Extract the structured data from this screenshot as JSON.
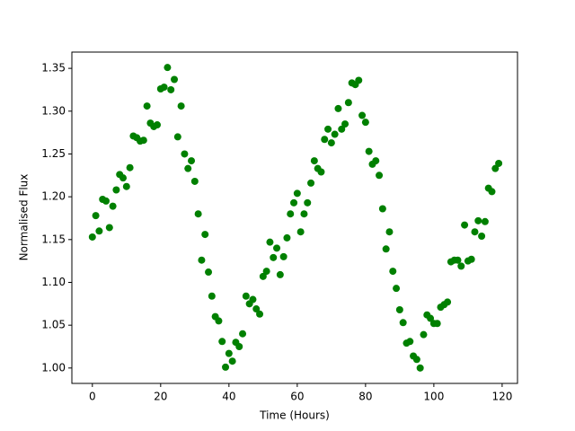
{
  "chart_data": {
    "type": "scatter",
    "xlabel": "Time (Hours)",
    "ylabel": "Normalised Flux",
    "color": "#008000",
    "x": [
      0,
      1,
      2,
      3,
      4,
      5,
      6,
      7,
      8,
      9,
      10,
      11,
      12,
      13,
      14,
      15,
      16,
      17,
      18,
      19,
      20,
      21,
      22,
      23,
      24,
      25,
      26,
      27,
      28,
      29,
      30,
      31,
      32,
      33,
      34,
      35,
      36,
      37,
      38,
      39,
      40,
      41,
      42,
      43,
      44,
      45,
      46,
      47,
      48,
      49,
      50,
      51,
      52,
      53,
      54,
      55,
      56,
      57,
      58,
      59,
      60,
      61,
      62,
      63,
      64,
      65,
      66,
      67,
      68,
      69,
      70,
      71,
      72,
      73,
      74,
      75,
      76,
      77,
      78,
      79,
      80,
      81,
      82,
      83,
      84,
      85,
      86,
      87,
      88,
      89,
      90,
      91,
      92,
      93,
      94,
      95,
      96,
      97,
      98,
      99,
      100,
      101,
      102,
      103,
      104,
      105,
      106,
      107,
      108,
      109,
      110,
      111,
      112,
      113,
      114,
      115,
      116,
      117,
      118,
      119
    ],
    "values": [
      1.153,
      1.178,
      1.16,
      1.197,
      1.195,
      1.164,
      1.189,
      1.208,
      1.226,
      1.222,
      1.212,
      1.234,
      1.271,
      1.269,
      1.265,
      1.266,
      1.306,
      1.286,
      1.282,
      1.284,
      1.326,
      1.328,
      1.351,
      1.325,
      1.337,
      1.27,
      1.306,
      1.25,
      1.233,
      1.242,
      1.218,
      1.18,
      1.126,
      1.156,
      1.112,
      1.084,
      1.06,
      1.055,
      1.031,
      1.001,
      1.017,
      1.008,
      1.03,
      1.025,
      1.04,
      1.084,
      1.075,
      1.08,
      1.069,
      1.063,
      1.107,
      1.113,
      1.147,
      1.129,
      1.14,
      1.109,
      1.13,
      1.152,
      1.18,
      1.193,
      1.204,
      1.159,
      1.18,
      1.193,
      1.216,
      1.242,
      1.233,
      1.229,
      1.267,
      1.279,
      1.263,
      1.273,
      1.303,
      1.279,
      1.285,
      1.31,
      1.333,
      1.331,
      1.336,
      1.295,
      1.287,
      1.253,
      1.238,
      1.242,
      1.225,
      1.186,
      1.139,
      1.159,
      1.113,
      1.093,
      1.068,
      1.053,
      1.029,
      1.031,
      1.014,
      1.01,
      1.0,
      1.039,
      1.062,
      1.058,
      1.052,
      1.052,
      1.071,
      1.074,
      1.077,
      1.124,
      1.126,
      1.126,
      1.119,
      1.167,
      1.125,
      1.127,
      1.159,
      1.172,
      1.154,
      1.171,
      1.21,
      1.206,
      1.233,
      1.239
    ],
    "xlim": [
      -6,
      124.5
    ],
    "ylim": [
      0.982,
      1.369
    ],
    "xticks": [
      0,
      20,
      40,
      60,
      80,
      100,
      120
    ],
    "yticks": [
      {
        "value": 1.0,
        "label": "1.00"
      },
      1.05,
      {
        "value": 1.1,
        "label": "1.10"
      },
      1.15,
      {
        "value": 1.2,
        "label": "1.20"
      },
      1.25,
      {
        "value": 1.3,
        "label": "1.30"
      },
      1.35
    ]
  }
}
